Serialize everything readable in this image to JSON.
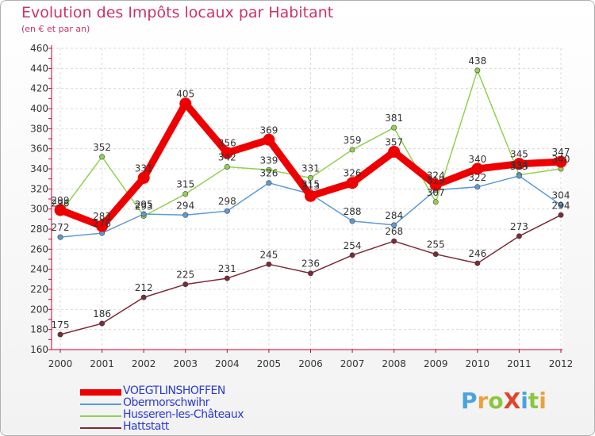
{
  "title": "Evolution des Impôts locaux par Habitant",
  "subtitle": "(en € et par an)",
  "logo": {
    "text": "ProXiti",
    "letters": [
      {
        "ch": "P",
        "color": "#4aa3df"
      },
      {
        "ch": "r",
        "color": "#e8a33d"
      },
      {
        "ch": "o",
        "color": "#8cc63f"
      },
      {
        "ch": "X",
        "color": "#e0452b"
      },
      {
        "ch": "i",
        "color": "#4aa3df"
      },
      {
        "ch": "t",
        "color": "#8cc63f"
      },
      {
        "ch": "i",
        "color": "#e8a33d"
      }
    ]
  },
  "chart_data": {
    "type": "line",
    "title": "Evolution des Impôts locaux par Habitant",
    "subtitle": "(en € et par an)",
    "x": [
      "2000",
      "2001",
      "2002",
      "2003",
      "2004",
      "2005",
      "2006",
      "2007",
      "2008",
      "2009",
      "2010",
      "2011",
      "2012"
    ],
    "ylim": [
      160,
      460
    ],
    "yticks": [
      160,
      180,
      200,
      220,
      240,
      260,
      280,
      300,
      320,
      340,
      360,
      380,
      400,
      420,
      440,
      460
    ],
    "grid": true,
    "legend_position": "bottom-left",
    "series": [
      {
        "name": "VOEGTLINSHOFFEN",
        "color": "#ee0000",
        "width": "thick",
        "values": [
          299,
          283,
          331,
          405,
          356,
          369,
          313,
          326,
          357,
          324,
          340,
          345,
          347
        ]
      },
      {
        "name": "Obermorschwihr",
        "color": "#5b9bd5",
        "width": "thin",
        "values": [
          272,
          276,
          295,
          294,
          298,
          326,
          315,
          288,
          284,
          319,
          322,
          333,
          304
        ]
      },
      {
        "name": "Husseren-les-Châteaux",
        "color": "#92d050",
        "width": "thin",
        "values": [
          296,
          352,
          293,
          315,
          342,
          339,
          331,
          359,
          381,
          307,
          438,
          334,
          340
        ]
      },
      {
        "name": "Hattstatt",
        "color": "#7b2a35",
        "width": "thin",
        "values": [
          175,
          186,
          212,
          225,
          231,
          245,
          236,
          254,
          268,
          255,
          246,
          273,
          294
        ]
      }
    ],
    "data_labels": [
      {
        "text": "299"
      },
      {
        "text": "283"
      },
      {
        "text": "331"
      },
      {
        "text": "405"
      },
      {
        "text": "356"
      },
      {
        "text": "369"
      },
      {
        "text": "313"
      },
      {
        "text": "326"
      },
      {
        "text": "357"
      },
      {
        "text": "324"
      },
      {
        "text": "340"
      },
      {
        "text": "345"
      },
      {
        "text": "347"
      },
      {
        "text": "272"
      },
      {
        "text": "276"
      },
      {
        "text": "295"
      },
      {
        "text": "294"
      },
      {
        "text": "298"
      },
      {
        "text": "326"
      },
      {
        "text": "315"
      },
      {
        "text": "288"
      },
      {
        "text": "284"
      },
      {
        "text": "319"
      },
      {
        "text": "322"
      },
      {
        "text": "333"
      },
      {
        "text": "304"
      },
      {
        "text": "296"
      },
      {
        "text": "352"
      },
      {
        "text": "293"
      },
      {
        "text": "315"
      },
      {
        "text": "342"
      },
      {
        "text": "339"
      },
      {
        "text": "331"
      },
      {
        "text": "359"
      },
      {
        "text": "381"
      },
      {
        "text": "307"
      },
      {
        "text": "438"
      },
      {
        "text": "334"
      },
      {
        "text": "340"
      },
      {
        "text": "175"
      },
      {
        "text": "186"
      },
      {
        "text": "212"
      },
      {
        "text": "225"
      },
      {
        "text": "231"
      },
      {
        "text": "245"
      },
      {
        "text": "236"
      },
      {
        "text": "254"
      },
      {
        "text": "268"
      },
      {
        "text": "255"
      },
      {
        "text": "246"
      },
      {
        "text": "273"
      },
      {
        "text": "294"
      }
    ]
  }
}
